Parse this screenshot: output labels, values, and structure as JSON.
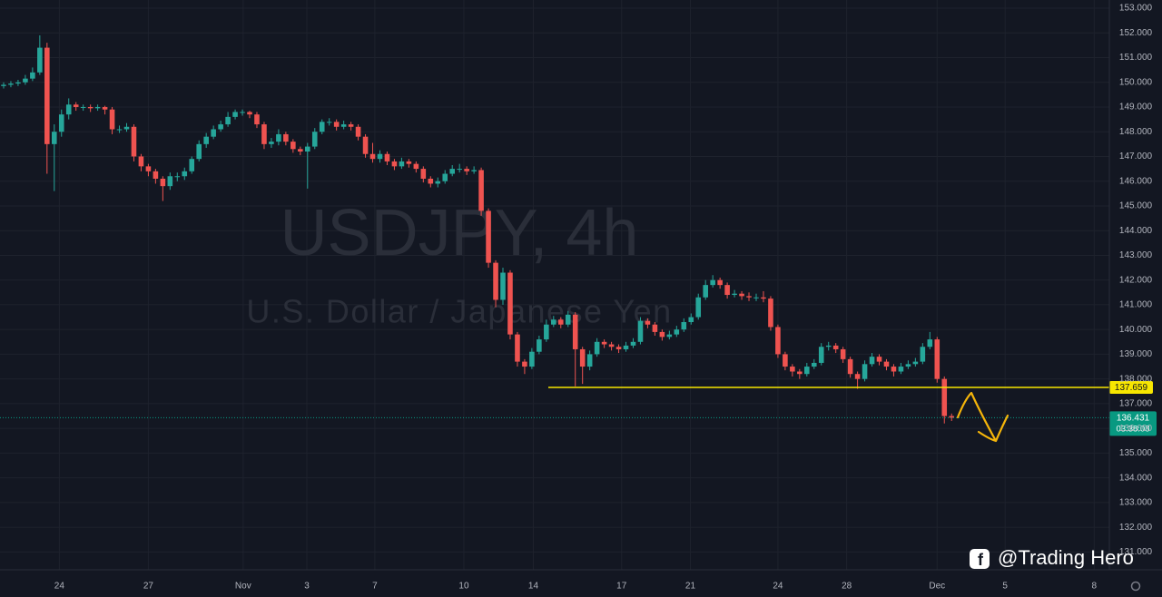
{
  "chart_data": {
    "type": "candlestick",
    "title": "USDJPY, 4h",
    "subtitle": "U.S. Dollar / Japanese Yen",
    "watermark": "@Trading Hero",
    "up_color": "#26a69a",
    "down_color": "#ef5350",
    "grid": true,
    "open": [
      149.85,
      149.9,
      149.95,
      150.0,
      150.15,
      150.4,
      151.4,
      147.5,
      148.0,
      148.7,
      149.1,
      149.0,
      149.0,
      148.95,
      149.0,
      148.9,
      148.1,
      148.1,
      148.2,
      147.0,
      146.6,
      146.4,
      146.1,
      145.8,
      146.2,
      146.2,
      146.4,
      146.9,
      147.5,
      147.8,
      148.1,
      148.3,
      148.6,
      148.8,
      148.8,
      148.7,
      148.3,
      147.5,
      147.6,
      147.9,
      147.6,
      147.3,
      147.2,
      147.4,
      148.0,
      148.4,
      148.4,
      148.2,
      148.3,
      148.2,
      147.8,
      147.1,
      146.9,
      147.1,
      146.8,
      146.6,
      146.8,
      146.7,
      146.5,
      146.1,
      145.9,
      146.0,
      146.3,
      146.5,
      146.5,
      146.4,
      146.45,
      144.8,
      142.7,
      141.2,
      142.3,
      139.8,
      138.7,
      138.5,
      139.1,
      139.6,
      140.2,
      140.4,
      140.2,
      140.6,
      139.2,
      138.5,
      139.0,
      139.5,
      139.4,
      139.3,
      139.2,
      139.35,
      139.5,
      140.35,
      140.2,
      139.9,
      139.7,
      139.8,
      140.0,
      140.3,
      140.5,
      141.3,
      141.8,
      142.0,
      141.8,
      141.4,
      141.45,
      141.35,
      141.3,
      141.3,
      141.25,
      140.1,
      139.0,
      138.5,
      138.3,
      138.2,
      138.5,
      138.65,
      139.3,
      139.35,
      139.2,
      138.8,
      138.2,
      138.0,
      138.6,
      138.9,
      138.7,
      138.5,
      138.3,
      138.5,
      138.6,
      138.7,
      139.3,
      139.6,
      138.0,
      136.5
    ],
    "high": [
      150.0,
      150.05,
      150.1,
      150.3,
      150.6,
      151.9,
      151.6,
      148.3,
      148.9,
      149.35,
      149.2,
      149.1,
      149.1,
      149.1,
      149.05,
      149.0,
      148.25,
      148.35,
      148.3,
      147.1,
      146.7,
      146.5,
      146.2,
      146.35,
      146.35,
      146.55,
      147.0,
      147.65,
      147.95,
      148.25,
      148.45,
      148.8,
      148.9,
      148.9,
      148.85,
      148.8,
      148.4,
      147.75,
      148.1,
      148.0,
      147.7,
      147.4,
      147.55,
      148.15,
      148.5,
      148.55,
      148.5,
      148.45,
      148.4,
      148.3,
      147.9,
      147.55,
      147.25,
      147.2,
      146.9,
      146.95,
      146.9,
      146.8,
      146.6,
      146.2,
      146.15,
      146.45,
      146.65,
      146.7,
      146.6,
      146.6,
      146.55,
      144.9,
      142.8,
      142.5,
      142.4,
      139.9,
      138.8,
      139.25,
      139.75,
      140.4,
      140.55,
      140.5,
      140.75,
      140.7,
      139.3,
      139.15,
      139.65,
      139.6,
      139.5,
      139.4,
      139.5,
      139.65,
      140.5,
      140.45,
      140.3,
      140.0,
      139.95,
      140.15,
      140.45,
      140.65,
      141.45,
      142.0,
      142.2,
      142.1,
      141.9,
      141.6,
      141.55,
      141.5,
      141.45,
      141.55,
      141.35,
      140.2,
      139.1,
      138.6,
      138.4,
      138.65,
      138.8,
      139.45,
      139.5,
      139.45,
      139.3,
      138.9,
      138.3,
      138.75,
      139.05,
      139.0,
      138.8,
      138.6,
      138.65,
      138.75,
      138.85,
      139.45,
      139.9,
      139.7,
      138.1,
      136.6
    ],
    "low": [
      149.75,
      149.8,
      149.85,
      149.9,
      150.05,
      150.3,
      146.3,
      145.6,
      147.8,
      148.5,
      148.85,
      148.85,
      148.8,
      148.85,
      148.7,
      147.9,
      147.95,
      148.0,
      146.8,
      146.4,
      146.2,
      145.9,
      145.2,
      145.65,
      146.0,
      146.05,
      146.3,
      146.8,
      147.35,
      147.7,
      148.0,
      148.2,
      148.5,
      148.65,
      148.55,
      148.15,
      147.3,
      147.35,
      147.45,
      147.45,
      147.15,
      147.05,
      145.7,
      147.3,
      147.9,
      148.25,
      148.05,
      148.1,
      148.05,
      147.65,
      146.95,
      146.75,
      146.75,
      146.65,
      146.45,
      146.5,
      146.55,
      146.35,
      145.95,
      145.75,
      145.75,
      145.9,
      146.2,
      146.35,
      146.25,
      146.3,
      144.6,
      142.5,
      140.9,
      141.0,
      139.6,
      138.5,
      138.2,
      138.4,
      139.0,
      139.5,
      140.1,
      140.05,
      140.1,
      137.7,
      137.8,
      138.35,
      138.9,
      139.25,
      139.15,
      139.05,
      139.1,
      139.25,
      139.4,
      140.05,
      139.75,
      139.55,
      139.6,
      139.7,
      139.9,
      140.2,
      140.4,
      141.2,
      141.7,
      141.65,
      141.25,
      141.3,
      141.2,
      141.15,
      141.15,
      141.1,
      139.95,
      138.85,
      138.35,
      138.1,
      138.0,
      138.1,
      138.4,
      138.55,
      139.15,
      139.05,
      138.65,
      138.05,
      137.6,
      137.9,
      138.5,
      138.55,
      138.35,
      138.1,
      138.2,
      138.4,
      138.5,
      138.6,
      139.2,
      137.85,
      136.2,
      136.3
    ],
    "close": [
      149.9,
      149.95,
      150.0,
      150.15,
      150.4,
      151.4,
      147.5,
      148.0,
      148.7,
      149.1,
      149.0,
      149.0,
      148.95,
      149.0,
      148.9,
      148.1,
      148.1,
      148.2,
      147.0,
      146.6,
      146.4,
      146.1,
      145.8,
      146.2,
      146.2,
      146.4,
      146.9,
      147.5,
      147.8,
      148.1,
      148.3,
      148.6,
      148.8,
      148.8,
      148.7,
      148.3,
      147.5,
      147.6,
      147.9,
      147.6,
      147.3,
      147.2,
      147.4,
      148.0,
      148.4,
      148.4,
      148.2,
      148.3,
      148.2,
      147.8,
      147.1,
      146.9,
      147.1,
      146.8,
      146.6,
      146.8,
      146.7,
      146.5,
      146.1,
      145.9,
      146.0,
      146.3,
      146.5,
      146.5,
      146.4,
      146.45,
      144.8,
      142.7,
      141.2,
      142.3,
      139.8,
      138.7,
      138.5,
      139.1,
      139.6,
      140.2,
      140.4,
      140.2,
      140.6,
      139.2,
      138.5,
      139.0,
      139.5,
      139.4,
      139.3,
      139.2,
      139.35,
      139.5,
      140.35,
      140.2,
      139.9,
      139.7,
      139.8,
      140.0,
      140.3,
      140.5,
      141.3,
      141.8,
      142.0,
      141.8,
      141.4,
      141.45,
      141.35,
      141.3,
      141.3,
      141.25,
      140.1,
      139.0,
      138.5,
      138.3,
      138.2,
      138.5,
      138.65,
      139.3,
      139.35,
      139.2,
      138.8,
      138.2,
      138.0,
      138.6,
      138.9,
      138.7,
      138.5,
      138.3,
      138.5,
      138.6,
      138.7,
      139.3,
      139.6,
      138.0,
      136.5,
      136.431
    ],
    "xlim": [
      -0.5,
      152.8
    ],
    "xticks": [
      {
        "value": 7.7,
        "label": "24"
      },
      {
        "value": 20.0,
        "label": "27"
      },
      {
        "value": 33.1,
        "label": "Nov"
      },
      {
        "value": 41.9,
        "label": "3"
      },
      {
        "value": 51.3,
        "label": "7"
      },
      {
        "value": 63.6,
        "label": "10"
      },
      {
        "value": 73.2,
        "label": "14"
      },
      {
        "value": 85.4,
        "label": "17"
      },
      {
        "value": 94.9,
        "label": "21"
      },
      {
        "value": 107.0,
        "label": "24"
      },
      {
        "value": 116.5,
        "label": "28"
      },
      {
        "value": 129.0,
        "label": "Dec"
      },
      {
        "value": 138.4,
        "label": "5"
      },
      {
        "value": 150.7,
        "label": "8"
      }
    ],
    "ylim": [
      130.28,
      153.33
    ],
    "yticks": [
      {
        "value": 131,
        "label": "131.000"
      },
      {
        "value": 132,
        "label": "132.000"
      },
      {
        "value": 133,
        "label": "133.000"
      },
      {
        "value": 134,
        "label": "134.000"
      },
      {
        "value": 135,
        "label": "135.000"
      },
      {
        "value": 136,
        "label": "136.000"
      },
      {
        "value": 137,
        "label": "137.000"
      },
      {
        "value": 138,
        "label": "138.000"
      },
      {
        "value": 139,
        "label": "139.000"
      },
      {
        "value": 140,
        "label": "140.000"
      },
      {
        "value": 141,
        "label": "141.000"
      },
      {
        "value": 142,
        "label": "142.000"
      },
      {
        "value": 143,
        "label": "143.000"
      },
      {
        "value": 144,
        "label": "144.000"
      },
      {
        "value": 145,
        "label": "145.000"
      },
      {
        "value": 146,
        "label": "146.000"
      },
      {
        "value": 147,
        "label": "147.000"
      },
      {
        "value": 148,
        "label": "148.000"
      },
      {
        "value": 149,
        "label": "149.000"
      },
      {
        "value": 150,
        "label": "150.000"
      },
      {
        "value": 151,
        "label": "151.000"
      },
      {
        "value": 152,
        "label": "152.000"
      },
      {
        "value": 153,
        "label": "153.000"
      }
    ],
    "level": {
      "value": 137.659,
      "color": "#f7e600"
    },
    "last_price": {
      "value": 136.431,
      "countdown": "03:38:08",
      "color": "#089981"
    }
  }
}
